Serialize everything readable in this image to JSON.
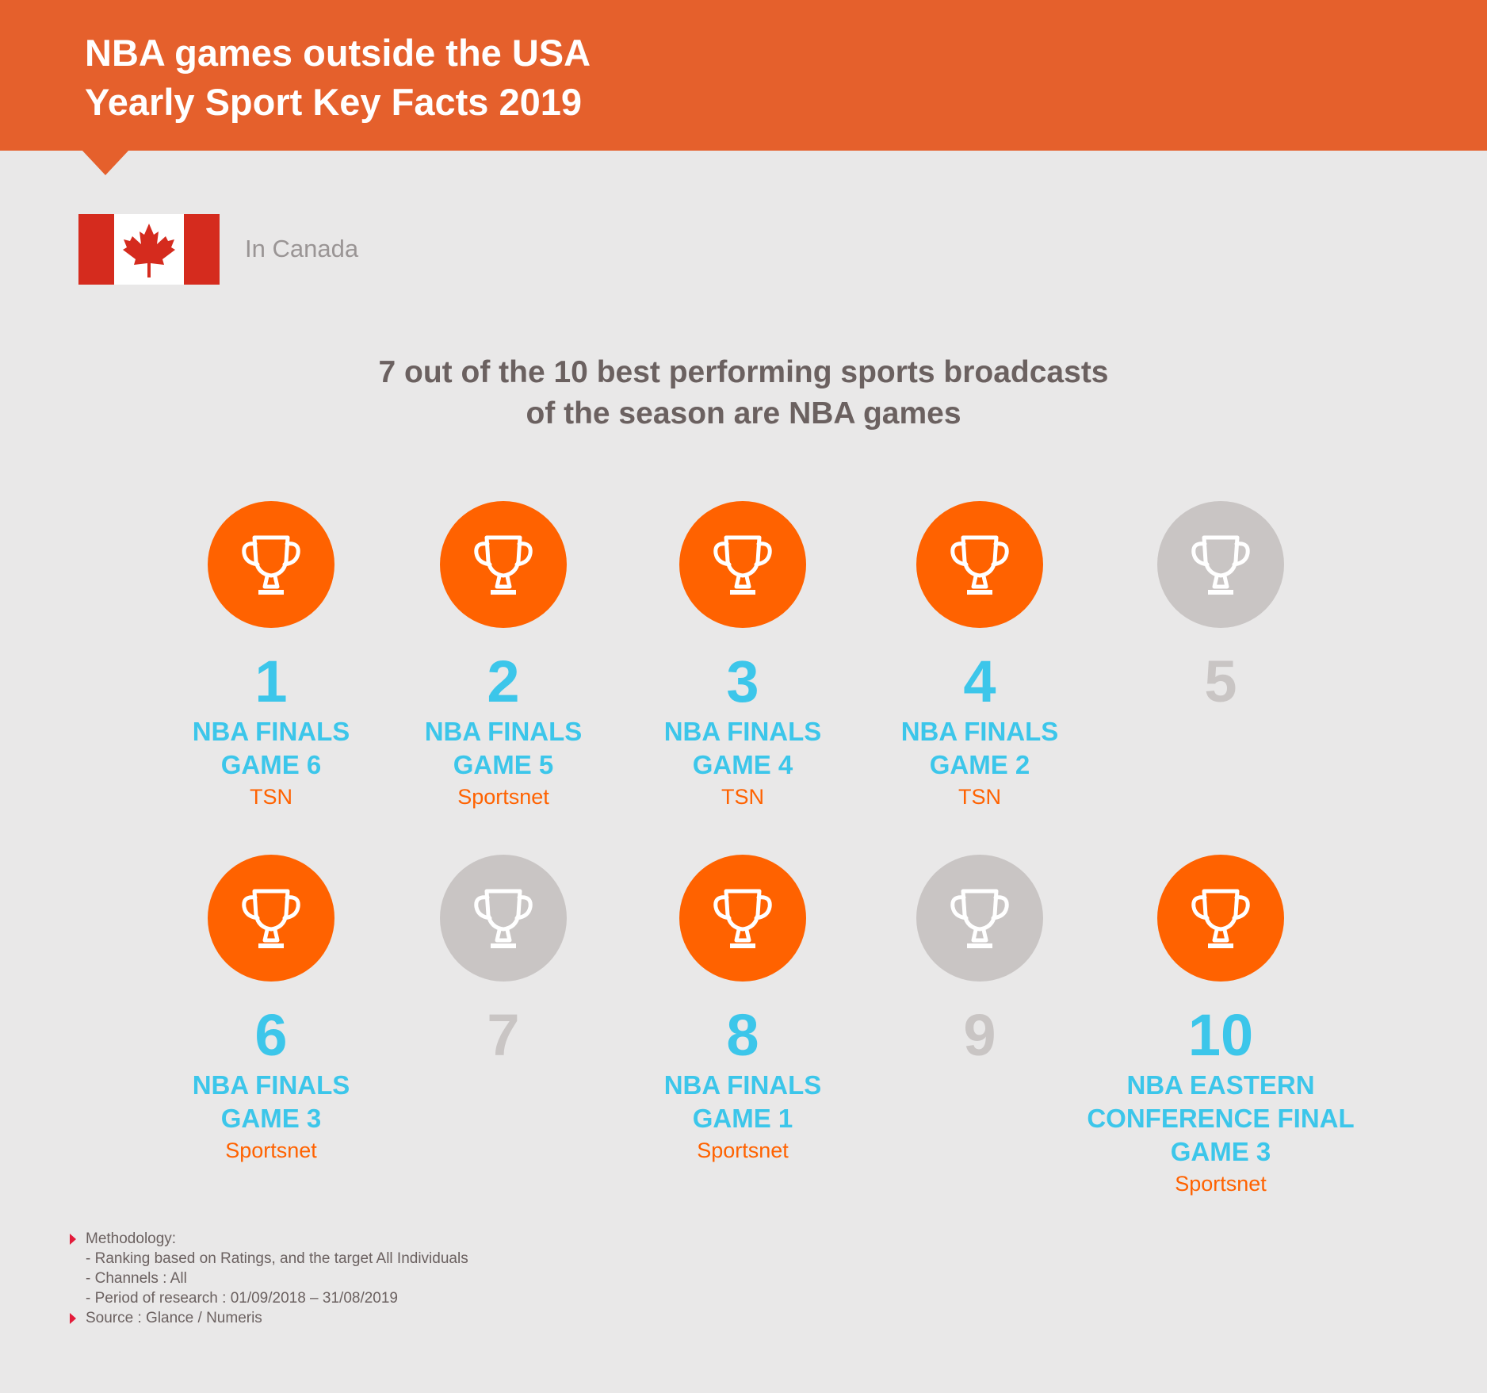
{
  "header": {
    "title_line1": "NBA games outside the USA",
    "title_line2": "Yearly Sport Key Facts 2019"
  },
  "country": {
    "label": "In Canada",
    "flag": "canada-flag-icon"
  },
  "headline": {
    "line1": "7 out of the 10 best performing sports broadcasts",
    "line2": "of the season are NBA games"
  },
  "colors": {
    "header": "#e5602c",
    "highlight_circle": "#ff6200",
    "muted_circle": "#c9c5c4",
    "rank_text": "#3cc6ea",
    "channel_text": "#ff6200",
    "bullet": "#e31b3a"
  },
  "rankings": [
    {
      "rank": "1",
      "nba": true,
      "title": [
        "NBA FINALS",
        "GAME 6"
      ],
      "channel": "TSN",
      "icon": "trophy-icon"
    },
    {
      "rank": "2",
      "nba": true,
      "title": [
        "NBA FINALS",
        "GAME 5"
      ],
      "channel": "Sportsnet",
      "icon": "trophy-icon"
    },
    {
      "rank": "3",
      "nba": true,
      "title": [
        "NBA FINALS",
        "GAME 4"
      ],
      "channel": "TSN",
      "icon": "trophy-icon"
    },
    {
      "rank": "4",
      "nba": true,
      "title": [
        "NBA FINALS",
        "GAME 2"
      ],
      "channel": "TSN",
      "icon": "trophy-icon"
    },
    {
      "rank": "5",
      "nba": false,
      "title": [],
      "channel": "",
      "icon": "trophy-icon"
    },
    {
      "rank": "6",
      "nba": true,
      "title": [
        "NBA FINALS",
        "GAME 3"
      ],
      "channel": "Sportsnet",
      "icon": "trophy-icon"
    },
    {
      "rank": "7",
      "nba": false,
      "title": [],
      "channel": "",
      "icon": "trophy-icon"
    },
    {
      "rank": "8",
      "nba": true,
      "title": [
        "NBA FINALS",
        "GAME 1"
      ],
      "channel": "Sportsnet",
      "icon": "trophy-icon"
    },
    {
      "rank": "9",
      "nba": false,
      "title": [],
      "channel": "",
      "icon": "trophy-icon"
    },
    {
      "rank": "10",
      "nba": true,
      "title": [
        "NBA EASTERN",
        "CONFERENCE FINAL",
        "GAME 3"
      ],
      "channel": "Sportsnet",
      "icon": "trophy-icon"
    }
  ],
  "footnotes": {
    "methodology_label": "Methodology:",
    "methodology_items": [
      "- Ranking based on Ratings, and the target All Individuals",
      "- Channels : All",
      "- Period of research : 01/09/2018 – 31/08/2019"
    ],
    "source": "Source : Glance / Numeris"
  }
}
